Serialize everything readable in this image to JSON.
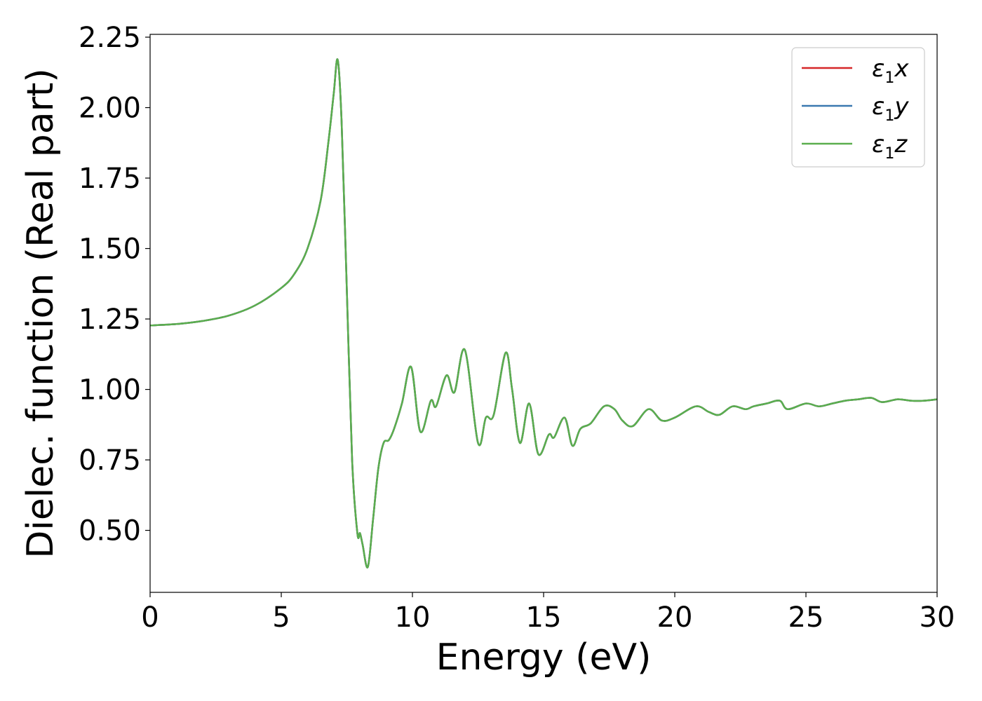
{
  "chart_data": {
    "type": "line",
    "title": "",
    "xlabel": "Energy (eV)",
    "ylabel": "Dielec. function (Real part)",
    "xlim": [
      0,
      30
    ],
    "ylim": [
      0.28,
      2.26
    ],
    "xticks": [
      0,
      5,
      10,
      15,
      20,
      25,
      30
    ],
    "yticks": [
      0.5,
      0.75,
      1.0,
      1.25,
      1.5,
      1.75,
      2.0,
      2.25
    ],
    "xtick_labels": [
      "0",
      "5",
      "10",
      "15",
      "20",
      "25",
      "30"
    ],
    "ytick_labels": [
      "0.50",
      "0.75",
      "1.00",
      "1.25",
      "1.50",
      "1.75",
      "2.00",
      "2.25"
    ],
    "grid": false,
    "legend_position": "top-right",
    "x": [
      0,
      1,
      2,
      3,
      4,
      5,
      5.5,
      6,
      6.5,
      6.8,
      7.0,
      7.15,
      7.3,
      7.5,
      7.7,
      7.9,
      8.0,
      8.1,
      8.3,
      8.5,
      8.7,
      8.9,
      9.1,
      9.3,
      9.6,
      9.95,
      10.3,
      10.7,
      10.9,
      11.3,
      11.6,
      12.0,
      12.5,
      12.8,
      13.1,
      13.55,
      13.8,
      14.1,
      14.45,
      14.8,
      15.2,
      15.4,
      15.8,
      16.1,
      16.4,
      16.8,
      17.3,
      17.7,
      18.0,
      18.4,
      19.0,
      19.5,
      20.0,
      20.8,
      21.3,
      21.7,
      22.2,
      22.7,
      23.0,
      23.5,
      24.0,
      24.3,
      25.0,
      25.5,
      26.0,
      26.5,
      27.0,
      27.5,
      27.9,
      28.5,
      29.0,
      29.5,
      30.0
    ],
    "series": [
      {
        "name": "ε₁x",
        "label_symbol": "ε",
        "label_sub": "1",
        "label_axis": "x",
        "color": "#d62728",
        "values": [
          1.227,
          1.232,
          1.243,
          1.262,
          1.298,
          1.36,
          1.41,
          1.5,
          1.67,
          1.88,
          2.05,
          2.17,
          1.95,
          1.35,
          0.75,
          0.49,
          0.49,
          0.45,
          0.37,
          0.54,
          0.72,
          0.81,
          0.82,
          0.86,
          0.95,
          1.08,
          0.85,
          0.96,
          0.94,
          1.05,
          0.99,
          1.14,
          0.81,
          0.9,
          0.91,
          1.13,
          1.0,
          0.81,
          0.95,
          0.77,
          0.84,
          0.83,
          0.9,
          0.8,
          0.86,
          0.88,
          0.94,
          0.93,
          0.89,
          0.87,
          0.93,
          0.89,
          0.9,
          0.94,
          0.92,
          0.91,
          0.94,
          0.93,
          0.94,
          0.95,
          0.96,
          0.93,
          0.95,
          0.94,
          0.95,
          0.96,
          0.965,
          0.97,
          0.955,
          0.965,
          0.96,
          0.96,
          0.965
        ]
      },
      {
        "name": "ε₁y",
        "label_symbol": "ε",
        "label_sub": "1",
        "label_axis": "y",
        "color": "#3a78b0",
        "values": [
          1.227,
          1.232,
          1.243,
          1.262,
          1.298,
          1.36,
          1.41,
          1.5,
          1.67,
          1.88,
          2.05,
          2.17,
          1.95,
          1.35,
          0.75,
          0.49,
          0.49,
          0.45,
          0.37,
          0.54,
          0.72,
          0.81,
          0.82,
          0.86,
          0.95,
          1.08,
          0.85,
          0.96,
          0.94,
          1.05,
          0.99,
          1.14,
          0.81,
          0.9,
          0.91,
          1.13,
          1.0,
          0.81,
          0.95,
          0.77,
          0.84,
          0.83,
          0.9,
          0.8,
          0.86,
          0.88,
          0.94,
          0.93,
          0.89,
          0.87,
          0.93,
          0.89,
          0.9,
          0.94,
          0.92,
          0.91,
          0.94,
          0.93,
          0.94,
          0.95,
          0.96,
          0.93,
          0.95,
          0.94,
          0.95,
          0.96,
          0.965,
          0.97,
          0.955,
          0.965,
          0.96,
          0.96,
          0.965
        ]
      },
      {
        "name": "ε₁z",
        "label_symbol": "ε",
        "label_sub": "1",
        "label_axis": "z",
        "color": "#5aae4e",
        "values": [
          1.227,
          1.232,
          1.243,
          1.262,
          1.298,
          1.36,
          1.41,
          1.5,
          1.67,
          1.88,
          2.05,
          2.17,
          1.95,
          1.35,
          0.75,
          0.49,
          0.49,
          0.45,
          0.37,
          0.54,
          0.72,
          0.81,
          0.82,
          0.86,
          0.95,
          1.08,
          0.85,
          0.96,
          0.94,
          1.05,
          0.99,
          1.14,
          0.81,
          0.9,
          0.91,
          1.13,
          1.0,
          0.81,
          0.95,
          0.77,
          0.84,
          0.83,
          0.9,
          0.8,
          0.86,
          0.88,
          0.94,
          0.93,
          0.89,
          0.87,
          0.93,
          0.89,
          0.9,
          0.94,
          0.92,
          0.91,
          0.94,
          0.93,
          0.94,
          0.95,
          0.96,
          0.93,
          0.95,
          0.94,
          0.95,
          0.96,
          0.965,
          0.97,
          0.955,
          0.965,
          0.96,
          0.96,
          0.965
        ]
      }
    ]
  }
}
